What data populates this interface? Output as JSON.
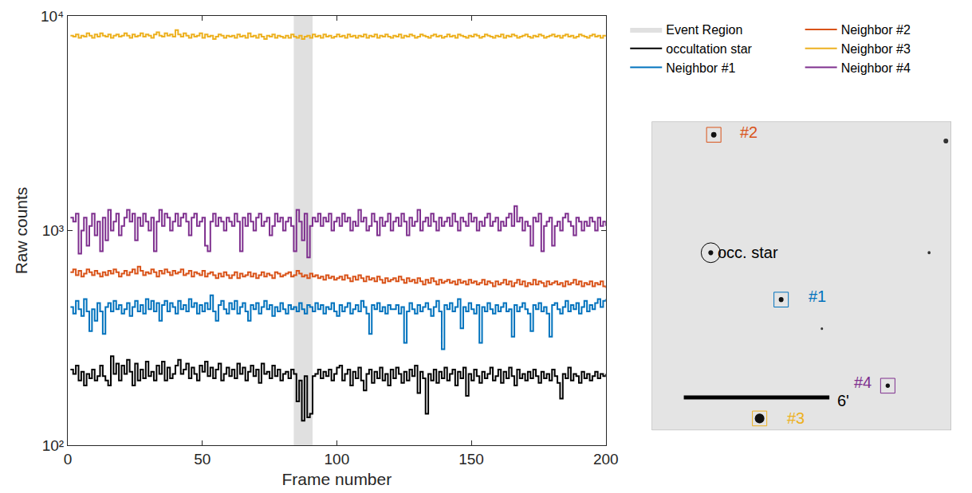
{
  "chart_data": {
    "type": "line",
    "line_style": "step",
    "log": "y",
    "grid": false,
    "legend": "top right",
    "x_label": "Frame number",
    "y_label": "Raw counts",
    "xlim": [
      0,
      200
    ],
    "xticks": [
      0,
      50,
      100,
      150,
      200
    ],
    "ylim": [
      100,
      10000
    ],
    "yticks": [
      {
        "value": 100,
        "label": "10²"
      },
      {
        "value": 1000,
        "label": "10³"
      },
      {
        "value": 10000,
        "label": "10⁴"
      }
    ],
    "regions": [
      {
        "name": "Event Region",
        "x": [
          84,
          91
        ],
        "color": "#e0e0e0"
      }
    ],
    "x": [
      1,
      2,
      3,
      4,
      5,
      6,
      7,
      8,
      9,
      10,
      11,
      12,
      13,
      14,
      15,
      16,
      17,
      18,
      19,
      20,
      21,
      22,
      23,
      24,
      25,
      26,
      27,
      28,
      29,
      30,
      31,
      32,
      33,
      34,
      35,
      36,
      37,
      38,
      39,
      40,
      41,
      42,
      43,
      44,
      45,
      46,
      47,
      48,
      49,
      50,
      51,
      52,
      53,
      54,
      55,
      56,
      57,
      58,
      59,
      60,
      61,
      62,
      63,
      64,
      65,
      66,
      67,
      68,
      69,
      70,
      71,
      72,
      73,
      74,
      75,
      76,
      77,
      78,
      79,
      80,
      81,
      82,
      83,
      84,
      85,
      86,
      87,
      88,
      89,
      90,
      91,
      92,
      93,
      94,
      95,
      96,
      97,
      98,
      99,
      100,
      101,
      102,
      103,
      104,
      105,
      106,
      107,
      108,
      109,
      110,
      111,
      112,
      113,
      114,
      115,
      116,
      117,
      118,
      119,
      120,
      121,
      122,
      123,
      124,
      125,
      126,
      127,
      128,
      129,
      130,
      131,
      132,
      133,
      134,
      135,
      136,
      137,
      138,
      139,
      140,
      141,
      142,
      143,
      144,
      145,
      146,
      147,
      148,
      149,
      150,
      151,
      152,
      153,
      154,
      155,
      156,
      157,
      158,
      159,
      160,
      161,
      162,
      163,
      164,
      165,
      166,
      167,
      168,
      169,
      170,
      171,
      172,
      173,
      174,
      175,
      176,
      177,
      178,
      179,
      180,
      181,
      182,
      183,
      184,
      185,
      186,
      187,
      188,
      189,
      190,
      191,
      192,
      193,
      194,
      195,
      196,
      197,
      198,
      199,
      200
    ],
    "series": [
      {
        "name": "occultation star",
        "color": "#000000",
        "values": [
          225,
          215,
          235,
          200,
          220,
          190,
          215,
          205,
          225,
          200,
          210,
          235,
          210,
          200,
          190,
          260,
          215,
          240,
          200,
          235,
          215,
          250,
          220,
          190,
          240,
          200,
          225,
          205,
          245,
          210,
          220,
          200,
          235,
          215,
          245,
          200,
          230,
          205,
          215,
          235,
          250,
          215,
          225,
          240,
          205,
          230,
          215,
          200,
          235,
          220,
          245,
          210,
          230,
          205,
          225,
          240,
          200,
          215,
          230,
          210,
          225,
          205,
          240,
          215,
          230,
          200,
          220,
          235,
          210,
          225,
          195,
          240,
          215,
          220,
          205,
          235,
          210,
          225,
          200,
          215,
          220,
          205,
          225,
          215,
          160,
          200,
          130,
          210,
          135,
          140,
          210,
          215,
          225,
          205,
          220,
          210,
          225,
          200,
          215,
          230,
          235,
          200,
          215,
          225,
          190,
          220,
          205,
          230,
          200,
          180,
          215,
          225,
          195,
          220,
          205,
          230,
          200,
          215,
          190,
          225,
          205,
          230,
          215,
          195,
          220,
          200,
          225,
          210,
          235,
          175,
          220,
          205,
          140,
          215,
          200,
          225,
          195,
          220,
          205,
          230,
          200,
          215,
          225,
          190,
          220,
          205,
          230,
          170,
          215,
          200,
          225,
          210,
          195,
          220,
          205,
          215,
          230,
          200,
          210,
          225,
          195,
          220,
          205,
          230,
          210,
          190,
          225,
          205,
          215,
          200,
          220,
          205,
          225,
          210,
          195,
          220,
          205,
          215,
          200,
          225,
          210,
          195,
          165,
          215,
          205,
          230,
          200,
          215,
          210,
          195,
          220,
          205,
          215,
          200,
          210,
          220,
          205,
          215,
          210,
          215
        ]
      },
      {
        "name": "Neighbor #1",
        "color": "#0072bd",
        "values": [
          440,
          410,
          470,
          430,
          400,
          480,
          420,
          340,
          430,
          380,
          460,
          420,
          330,
          440,
          460,
          420,
          470,
          430,
          450,
          410,
          430,
          460,
          400,
          440,
          470,
          420,
          450,
          410,
          480,
          430,
          470,
          420,
          460,
          380,
          450,
          470,
          420,
          460,
          440,
          410,
          470,
          430,
          450,
          420,
          480,
          440,
          460,
          410,
          450,
          420,
          460,
          430,
          500,
          420,
          380,
          450,
          470,
          430,
          410,
          460,
          430,
          470,
          410,
          440,
          460,
          420,
          380,
          450,
          430,
          460,
          410,
          440,
          470,
          430,
          450,
          400,
          440,
          420,
          460,
          430,
          410,
          450,
          430,
          440,
          420,
          460,
          430,
          410,
          450,
          440,
          420,
          460,
          430,
          450,
          410,
          440,
          430,
          460,
          420,
          400,
          450,
          420,
          440,
          460,
          410,
          430,
          450,
          420,
          470,
          440,
          410,
          330,
          450,
          430,
          460,
          420,
          440,
          410,
          450,
          430,
          430,
          450,
          410,
          440,
          300,
          420,
          460,
          430,
          410,
          450,
          420,
          440,
          460,
          430,
          400,
          440,
          470,
          420,
          280,
          450,
          430,
          460,
          420,
          440,
          480,
          350,
          440,
          420,
          460,
          430,
          410,
          450,
          300,
          440,
          420,
          460,
          430,
          410,
          450,
          420,
          440,
          460,
          420,
          430,
          320,
          450,
          420,
          440,
          460,
          430,
          410,
          340,
          450,
          430,
          460,
          420,
          440,
          410,
          320,
          450,
          460,
          430,
          410,
          440,
          470,
          420,
          450,
          430,
          460,
          410,
          440,
          470,
          420,
          450,
          430,
          460,
          480,
          440,
          470,
          480
        ]
      },
      {
        "name": "Neighbor #2",
        "color": "#d95319",
        "values": [
          640,
          660,
          620,
          650,
          610,
          630,
          660,
          640,
          620,
          650,
          630,
          610,
          640,
          620,
          650,
          630,
          660,
          640,
          610,
          630,
          650,
          620,
          640,
          660,
          630,
          680,
          650,
          620,
          640,
          630,
          660,
          640,
          610,
          650,
          630,
          660,
          640,
          620,
          650,
          630,
          640,
          660,
          620,
          630,
          650,
          610,
          640,
          630,
          620,
          650,
          610,
          630,
          640,
          620,
          600,
          630,
          610,
          640,
          620,
          600,
          620,
          640,
          600,
          630,
          610,
          620,
          640,
          610,
          630,
          600,
          620,
          640,
          610,
          630,
          620,
          600,
          640,
          630,
          610,
          620,
          630,
          640,
          610,
          620,
          650,
          630,
          610,
          620,
          600,
          630,
          610,
          620,
          600,
          610,
          590,
          620,
          600,
          610,
          590,
          600,
          610,
          590,
          620,
          600,
          580,
          610,
          590,
          620,
          600,
          580,
          610,
          590,
          600,
          580,
          610,
          590,
          570,
          600,
          580,
          590,
          600,
          580,
          610,
          590,
          570,
          600,
          580,
          590,
          570,
          600,
          580,
          560,
          590,
          570,
          600,
          580,
          560,
          590,
          570,
          580,
          590,
          570,
          580,
          560,
          590,
          570,
          580,
          560,
          590,
          570,
          580,
          560,
          570,
          590,
          560,
          580,
          570,
          550,
          580,
          560,
          570,
          590,
          560,
          580,
          550,
          570,
          590,
          560,
          580,
          550,
          570,
          560,
          590,
          560,
          580,
          570,
          550,
          580,
          560,
          570,
          580,
          560,
          570,
          550,
          580,
          560,
          570,
          590,
          560,
          580,
          550,
          570,
          560,
          580,
          550,
          570,
          560,
          580,
          550,
          540
        ]
      },
      {
        "name": "Neighbor #3",
        "color": "#edb120",
        "values": [
          8100,
          8000,
          8200,
          7900,
          8100,
          8000,
          8300,
          8100,
          7900,
          8200,
          8000,
          8300,
          8100,
          8000,
          8200,
          7900,
          8100,
          8200,
          8000,
          8100,
          8300,
          8100,
          7900,
          8200,
          8000,
          8100,
          8300,
          8000,
          8200,
          8100,
          7900,
          8200,
          8400,
          8100,
          8000,
          8300,
          8100,
          8200,
          8000,
          8600,
          8200,
          8000,
          8300,
          8100,
          7900,
          8200,
          8000,
          8100,
          8300,
          7900,
          8200,
          8000,
          8100,
          7800,
          8000,
          8200,
          8100,
          7900,
          8100,
          8000,
          8100,
          7900,
          8200,
          8000,
          8100,
          7900,
          8300,
          8000,
          8100,
          7900,
          8200,
          8000,
          7800,
          8100,
          8000,
          8200,
          7900,
          8100,
          8000,
          7900,
          8100,
          7900,
          8200,
          8000,
          7900,
          8100,
          7800,
          8000,
          8100,
          7900,
          8200,
          8000,
          8100,
          7900,
          8200,
          8000,
          8100,
          7900,
          8000,
          8200,
          8000,
          8100,
          7900,
          8200,
          8000,
          8100,
          7900,
          8100,
          8000,
          8200,
          7900,
          8100,
          8000,
          8200,
          7900,
          8100,
          8000,
          8200,
          8000,
          7900,
          8100,
          8000,
          8200,
          7900,
          8100,
          8000,
          8200,
          8100,
          7900,
          8000,
          8200,
          8100,
          8000,
          7900,
          8100,
          8200,
          8000,
          8100,
          7900,
          8000,
          8200,
          8000,
          8100,
          7900,
          8200,
          8100,
          8000,
          7900,
          8100,
          8000,
          8200,
          8100,
          7900,
          8000,
          8200,
          8100,
          8000,
          7900,
          8100,
          8000,
          8200,
          7900,
          8100,
          8000,
          8200,
          8100,
          7900,
          8000,
          8100,
          8200,
          8000,
          7900,
          8100,
          8000,
          8200,
          8100,
          7900,
          8000,
          8100,
          8200,
          8000,
          8100,
          7900,
          8100,
          8200,
          8000,
          8100,
          7900,
          8000,
          8200,
          8100,
          8000,
          7900,
          8100,
          8200,
          8000,
          8100,
          7900,
          8100,
          8000
        ]
      },
      {
        "name": "Neighbor #4",
        "color": "#7e2f8e",
        "values": [
          1150,
          1100,
          1200,
          780,
          1000,
          1150,
          850,
          1050,
          1200,
          950,
          1100,
          800,
          1150,
          900,
          1250,
          1000,
          1100,
          1200,
          950,
          1050,
          1150,
          1250,
          1100,
          1200,
          900,
          1150,
          1050,
          1200,
          1100,
          1000,
          1150,
          800,
          1100,
          1250,
          1050,
          1200,
          1150,
          1000,
          1100,
          1200,
          1050,
          1150,
          1200,
          1100,
          950,
          1150,
          1200,
          1050,
          1100,
          1150,
          850,
          800,
          1100,
          1200,
          1050,
          1150,
          1100,
          1000,
          1150,
          1100,
          1050,
          1200,
          1100,
          800,
          1150,
          1050,
          1200,
          1100,
          1000,
          1150,
          1200,
          1050,
          1100,
          1150,
          950,
          1050,
          1200,
          1100,
          1150,
          1000,
          1100,
          1150,
          1050,
          800,
          1250,
          1100,
          900,
          1200,
          750,
          1050,
          1150,
          1100,
          1200,
          1050,
          1150,
          1100,
          1200,
          1000,
          1100,
          1150,
          1050,
          1200,
          1100,
          1150,
          1000,
          1100,
          1050,
          1250,
          1100,
          1150,
          1000,
          1050,
          1200,
          1100,
          950,
          1150,
          1050,
          1100,
          1200,
          1000,
          1100,
          1150,
          1050,
          1200,
          1100,
          950,
          1150,
          1050,
          1100,
          1250,
          1000,
          1100,
          1150,
          1050,
          1200,
          1100,
          1000,
          1150,
          1050,
          1100,
          1150,
          1050,
          1200,
          1100,
          1000,
          1150,
          1100,
          1050,
          1200,
          1100,
          1150,
          1000,
          1100,
          1050,
          1150,
          1200,
          1050,
          1100,
          1150,
          1000,
          1100,
          1050,
          1150,
          1200,
          1050,
          1300,
          1100,
          1150,
          1000,
          1100,
          1050,
          850,
          1150,
          1100,
          1200,
          800,
          1050,
          1100,
          1150,
          850,
          1050,
          1100,
          1000,
          1150,
          1200,
          1100,
          1050,
          950,
          1150,
          1100,
          1000,
          1100,
          1050,
          1150,
          1100,
          1000,
          1150,
          1050,
          1100,
          1050
        ]
      }
    ]
  },
  "finder_image": {
    "markers": [
      {
        "label": "occ. star",
        "color": "#000000",
        "shape": "circle"
      },
      {
        "label": "#1",
        "color": "#0072bd",
        "shape": "square"
      },
      {
        "label": "#2",
        "color": "#d95319",
        "shape": "square"
      },
      {
        "label": "#3",
        "color": "#edb120",
        "shape": "square"
      },
      {
        "label": "#4",
        "color": "#7e2f8e",
        "shape": "square"
      }
    ],
    "scale_bar": "6'"
  }
}
